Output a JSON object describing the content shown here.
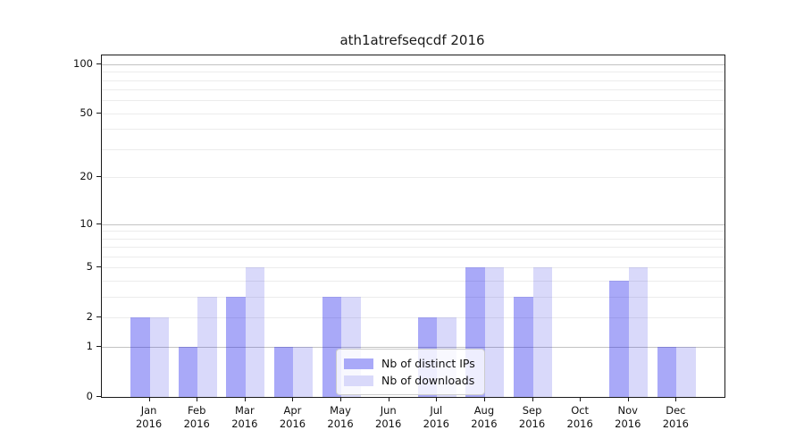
{
  "chart_data": {
    "type": "bar",
    "title": "ath1atrefseqcdf 2016",
    "categories": [
      "Jan",
      "Feb",
      "Mar",
      "Apr",
      "May",
      "Jun",
      "Jul",
      "Aug",
      "Sep",
      "Oct",
      "Nov",
      "Dec"
    ],
    "category_year": "2016",
    "series": [
      {
        "name": "Nb of distinct IPs",
        "color": "#a9a9f8",
        "fill": "rgba(10,10,235,0.35)",
        "values": [
          2,
          1,
          3,
          1,
          3,
          0,
          2,
          5,
          3,
          0,
          4,
          1
        ]
      },
      {
        "name": "Nb of downloads",
        "color": "#d9d9fa",
        "fill": "rgba(20,20,225,0.16)",
        "values": [
          2,
          3,
          5,
          1,
          3,
          0,
          2,
          5,
          5,
          0,
          5,
          1
        ]
      }
    ],
    "xlabel": "",
    "ylabel": "",
    "yscale": "log1p",
    "ylim": [
      0,
      113
    ],
    "yticks": [
      0,
      1,
      2,
      5,
      10,
      20,
      50,
      100
    ],
    "gridlines_major": [
      1,
      10,
      100
    ],
    "gridlines_minor": [
      2,
      3,
      4,
      5,
      6,
      7,
      8,
      9,
      20,
      30,
      40,
      50,
      60,
      70,
      80,
      90
    ],
    "grid": "horizontal",
    "legend_position": "lower center"
  }
}
